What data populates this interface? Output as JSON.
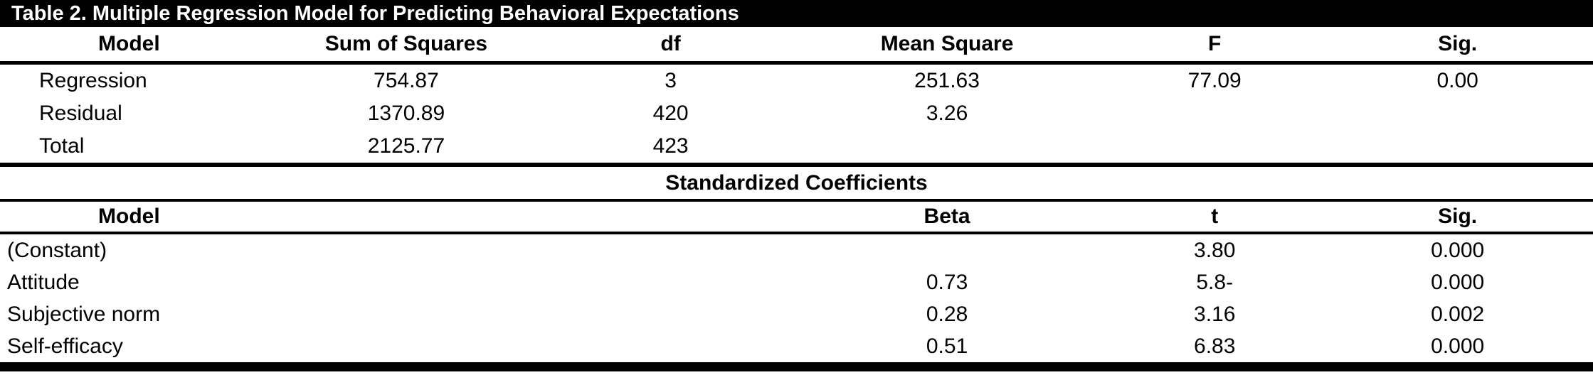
{
  "title": "Table 2. Multiple Regression Model for Predicting Behavioral Expectations",
  "colors": {
    "title_bar_bg": "#000000",
    "title_bar_text": "#ffffff",
    "body_text": "#000000",
    "background": "#ffffff"
  },
  "anova": {
    "headers": {
      "model": "Model",
      "sum_of_squares": "Sum of Squares",
      "df": "df",
      "mean_square": "Mean Square",
      "f": "F",
      "sig": "Sig."
    },
    "rows": [
      {
        "model": "Regression",
        "sum_of_squares": "754.87",
        "df": "3",
        "mean_square": "251.63",
        "f": "77.09",
        "sig": "0.00"
      },
      {
        "model": "Residual",
        "sum_of_squares": "1370.89",
        "df": "420",
        "mean_square": "3.26",
        "f": "",
        "sig": ""
      },
      {
        "model": "Total",
        "sum_of_squares": "2125.77",
        "df": "423",
        "mean_square": "",
        "f": "",
        "sig": ""
      }
    ]
  },
  "coefficients": {
    "section_title": "Standardized Coefficients",
    "headers": {
      "model": "Model",
      "beta": "Beta",
      "t": "t",
      "sig": "Sig."
    },
    "rows": [
      {
        "model": "(Constant)",
        "beta": "",
        "t": "3.80",
        "sig": "0.000"
      },
      {
        "model": "Attitude",
        "beta": "0.73",
        "t": "5.8-",
        "sig": "0.000"
      },
      {
        "model": "Subjective norm",
        "beta": "0.28",
        "t": "3.16",
        "sig": "0.002"
      },
      {
        "model": "Self-efficacy",
        "beta": "0.51",
        "t": "6.83",
        "sig": "0.000"
      }
    ]
  }
}
